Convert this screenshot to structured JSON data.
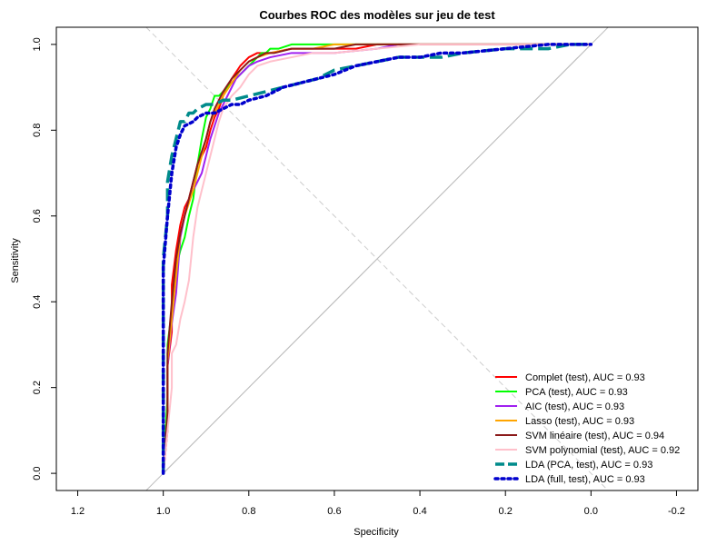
{
  "chart_data": {
    "type": "line",
    "title": "Courbes ROC des modèles sur jeu de test",
    "xlabel": "Specificity",
    "ylabel": "Sensitivity",
    "xlim": [
      1.25,
      -0.25
    ],
    "ylim": [
      -0.04,
      1.04
    ],
    "x_reversed": true,
    "x_ticks": [
      {
        "value": 1.2,
        "label": "1.2"
      },
      {
        "value": 1.0,
        "label": "1.0"
      },
      {
        "value": 0.8,
        "label": "0.8"
      },
      {
        "value": 0.6,
        "label": "0.6"
      },
      {
        "value": 0.4,
        "label": "0.4"
      },
      {
        "value": 0.2,
        "label": "0.2"
      },
      {
        "value": 0.0,
        "label": "0.0"
      },
      {
        "value": -0.2,
        "label": "-0.2"
      }
    ],
    "y_ticks": [
      {
        "value": 0.0,
        "label": "0.0"
      },
      {
        "value": 0.2,
        "label": "0.2"
      },
      {
        "value": 0.4,
        "label": "0.4"
      },
      {
        "value": 0.6,
        "label": "0.6"
      },
      {
        "value": 0.8,
        "label": "0.8"
      },
      {
        "value": 1.0,
        "label": "1.0"
      }
    ],
    "grid": false,
    "legend_position": "bottom-right",
    "reference_lines": [
      {
        "from": [
          1.0,
          0.0
        ],
        "to": [
          0.0,
          1.0
        ],
        "color": "#bebebe",
        "style": "solid"
      },
      {
        "from": [
          1.04,
          1.04
        ],
        "to": [
          -0.04,
          -0.04
        ],
        "color": "#cccccc",
        "style": "dashed"
      }
    ],
    "series": [
      {
        "name": "Complet (test), AUC = 0.93",
        "color": "#ff0000",
        "style": "solid",
        "x": [
          1.0,
          0.99,
          0.99,
          0.98,
          0.98,
          0.97,
          0.96,
          0.95,
          0.94,
          0.93,
          0.92,
          0.91,
          0.9,
          0.89,
          0.88,
          0.87,
          0.86,
          0.84,
          0.82,
          0.8,
          0.78,
          0.75,
          0.7,
          0.65,
          0.6,
          0.55,
          0.5,
          0.4,
          0.3,
          0.0
        ],
        "y": [
          0.0,
          0.1,
          0.25,
          0.33,
          0.44,
          0.52,
          0.58,
          0.62,
          0.64,
          0.68,
          0.72,
          0.74,
          0.76,
          0.8,
          0.83,
          0.85,
          0.88,
          0.92,
          0.95,
          0.97,
          0.98,
          0.98,
          0.99,
          0.99,
          0.99,
          0.99,
          1.0,
          1.0,
          1.0,
          1.0
        ]
      },
      {
        "name": "PCA (test), AUC = 0.93",
        "color": "#00ff00",
        "style": "solid",
        "x": [
          1.0,
          0.99,
          0.99,
          0.98,
          0.97,
          0.96,
          0.95,
          0.94,
          0.93,
          0.92,
          0.91,
          0.9,
          0.89,
          0.88,
          0.87,
          0.86,
          0.84,
          0.82,
          0.8,
          0.79,
          0.78,
          0.77,
          0.76,
          0.75,
          0.73,
          0.7,
          0.65,
          0.6,
          0.5,
          0.4,
          0.0
        ],
        "y": [
          0.0,
          0.18,
          0.3,
          0.38,
          0.48,
          0.52,
          0.55,
          0.6,
          0.64,
          0.72,
          0.78,
          0.83,
          0.85,
          0.88,
          0.88,
          0.89,
          0.91,
          0.93,
          0.95,
          0.96,
          0.97,
          0.98,
          0.98,
          0.99,
          0.99,
          1.0,
          1.0,
          1.0,
          1.0,
          1.0,
          1.0
        ]
      },
      {
        "name": "AIC (test), AUC = 0.93",
        "color": "#a020f0",
        "style": "solid",
        "x": [
          1.0,
          0.99,
          0.99,
          0.98,
          0.97,
          0.96,
          0.95,
          0.94,
          0.93,
          0.92,
          0.91,
          0.9,
          0.89,
          0.88,
          0.87,
          0.85,
          0.83,
          0.8,
          0.78,
          0.75,
          0.7,
          0.65,
          0.6,
          0.5,
          0.45,
          0.4,
          0.0
        ],
        "y": [
          0.0,
          0.12,
          0.25,
          0.35,
          0.42,
          0.55,
          0.6,
          0.64,
          0.66,
          0.68,
          0.7,
          0.74,
          0.78,
          0.81,
          0.84,
          0.88,
          0.92,
          0.95,
          0.96,
          0.97,
          0.98,
          0.98,
          0.98,
          0.99,
          1.0,
          1.0,
          1.0
        ]
      },
      {
        "name": "Lasso (test), AUC = 0.93",
        "color": "#ffa500",
        "style": "solid",
        "x": [
          1.0,
          0.99,
          0.99,
          0.98,
          0.97,
          0.96,
          0.95,
          0.94,
          0.93,
          0.92,
          0.91,
          0.9,
          0.89,
          0.88,
          0.87,
          0.86,
          0.84,
          0.82,
          0.8,
          0.78,
          0.75,
          0.7,
          0.68,
          0.65,
          0.6,
          0.5,
          0.4,
          0.0
        ],
        "y": [
          0.0,
          0.14,
          0.26,
          0.36,
          0.46,
          0.56,
          0.6,
          0.63,
          0.66,
          0.7,
          0.74,
          0.78,
          0.82,
          0.84,
          0.86,
          0.88,
          0.91,
          0.94,
          0.96,
          0.97,
          0.98,
          0.99,
          0.99,
          0.99,
          1.0,
          1.0,
          1.0,
          1.0
        ]
      },
      {
        "name": "SVM linéaire (test), AUC = 0.94",
        "color": "#8b1a1a",
        "style": "solid",
        "x": [
          1.0,
          0.99,
          0.99,
          0.98,
          0.97,
          0.96,
          0.95,
          0.94,
          0.93,
          0.92,
          0.91,
          0.9,
          0.89,
          0.88,
          0.87,
          0.86,
          0.84,
          0.82,
          0.8,
          0.78,
          0.76,
          0.74,
          0.7,
          0.65,
          0.6,
          0.55,
          0.5,
          0.45,
          0.4,
          0.0
        ],
        "y": [
          0.0,
          0.14,
          0.28,
          0.4,
          0.5,
          0.56,
          0.6,
          0.64,
          0.68,
          0.72,
          0.75,
          0.78,
          0.82,
          0.85,
          0.87,
          0.89,
          0.92,
          0.94,
          0.96,
          0.97,
          0.98,
          0.98,
          0.99,
          0.99,
          0.99,
          1.0,
          1.0,
          1.0,
          1.0,
          1.0
        ]
      },
      {
        "name": "SVM polynomial (test), AUC = 0.92",
        "color": "#ffc0cb",
        "style": "solid",
        "x": [
          1.0,
          0.99,
          0.98,
          0.98,
          0.97,
          0.96,
          0.95,
          0.94,
          0.93,
          0.92,
          0.91,
          0.9,
          0.89,
          0.88,
          0.87,
          0.86,
          0.84,
          0.82,
          0.8,
          0.78,
          0.75,
          0.7,
          0.65,
          0.6,
          0.5,
          0.4,
          0.0
        ],
        "y": [
          0.0,
          0.1,
          0.2,
          0.28,
          0.3,
          0.36,
          0.4,
          0.45,
          0.55,
          0.62,
          0.66,
          0.7,
          0.74,
          0.78,
          0.82,
          0.85,
          0.88,
          0.9,
          0.93,
          0.95,
          0.96,
          0.97,
          0.98,
          0.98,
          0.99,
          1.0,
          1.0
        ]
      },
      {
        "name": "LDA (PCA, test), AUC = 0.93",
        "color": "#008b8b",
        "style": "dashed",
        "x": [
          1.0,
          1.0,
          1.0,
          0.99,
          0.99,
          0.98,
          0.97,
          0.96,
          0.95,
          0.94,
          0.93,
          0.92,
          0.9,
          0.88,
          0.86,
          0.84,
          0.8,
          0.76,
          0.72,
          0.68,
          0.64,
          0.6,
          0.55,
          0.5,
          0.45,
          0.4,
          0.35,
          0.3,
          0.2,
          0.1,
          0.05,
          0.0
        ],
        "y": [
          0.0,
          0.22,
          0.5,
          0.6,
          0.68,
          0.74,
          0.78,
          0.82,
          0.82,
          0.84,
          0.84,
          0.85,
          0.86,
          0.86,
          0.87,
          0.87,
          0.88,
          0.89,
          0.9,
          0.91,
          0.92,
          0.94,
          0.95,
          0.96,
          0.97,
          0.97,
          0.97,
          0.98,
          0.99,
          0.99,
          1.0,
          1.0
        ]
      },
      {
        "name": "LDA (full, test), AUC = 0.93",
        "color": "#0000cd",
        "style": "dotted",
        "x": [
          1.0,
          1.0,
          1.0,
          0.99,
          0.98,
          0.97,
          0.96,
          0.95,
          0.93,
          0.92,
          0.9,
          0.88,
          0.86,
          0.84,
          0.82,
          0.8,
          0.76,
          0.72,
          0.68,
          0.64,
          0.6,
          0.55,
          0.5,
          0.45,
          0.4,
          0.35,
          0.3,
          0.2,
          0.1,
          0.0
        ],
        "y": [
          0.0,
          0.2,
          0.48,
          0.6,
          0.7,
          0.76,
          0.79,
          0.81,
          0.82,
          0.83,
          0.84,
          0.84,
          0.85,
          0.86,
          0.86,
          0.87,
          0.88,
          0.9,
          0.91,
          0.92,
          0.93,
          0.95,
          0.96,
          0.97,
          0.97,
          0.98,
          0.98,
          0.99,
          1.0,
          1.0
        ]
      }
    ]
  }
}
